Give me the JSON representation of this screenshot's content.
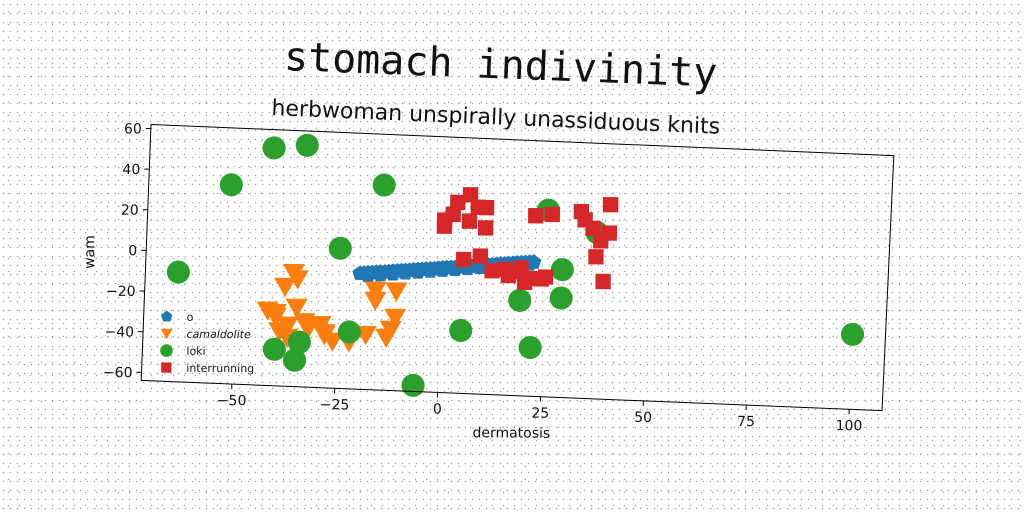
{
  "chart_data": {
    "type": "scatter",
    "title": "stomach indivinity",
    "subtitle": "herbwoman unspirally unassiduous knits",
    "xlabel": "dermatosis",
    "ylabel": "wam",
    "xlim": [
      -72,
      108
    ],
    "ylim": [
      -64,
      62
    ],
    "xticks": [
      -50,
      -25,
      0,
      25,
      50,
      75,
      100
    ],
    "yticks": [
      60,
      40,
      20,
      0,
      -20,
      -40,
      -60
    ],
    "xtick_labels": [
      "−50",
      "−25",
      "0",
      "25",
      "50",
      "75",
      "100"
    ],
    "ytick_labels": [
      "60",
      "40",
      "20",
      "0",
      "−20",
      "−40",
      "−60"
    ],
    "grid": false,
    "legend_position": "lower-left",
    "series": [
      {
        "name": "o",
        "marker": "pentagon",
        "color": "#1f77b4",
        "x": [
          -20,
          -19,
          -18,
          -17,
          -16,
          -15,
          -14,
          -13,
          -12,
          -11,
          -10,
          -9,
          -8,
          -7,
          -6,
          -5,
          -4,
          -3,
          -2,
          -1,
          0,
          1,
          2,
          3,
          4,
          5,
          6,
          7,
          8,
          9,
          10,
          11,
          12,
          13,
          14,
          15,
          16,
          17,
          18,
          19,
          20,
          21,
          22,
          -18,
          -15,
          -12,
          -9,
          -6,
          -3,
          0,
          3,
          6,
          9,
          12,
          15,
          18,
          21
        ],
        "y": [
          -7,
          -6.8,
          -6.6,
          -6.4,
          -6.2,
          -6,
          -5.8,
          -5.6,
          -5.3,
          -5.1,
          -4.9,
          -4.7,
          -4.5,
          -4.2,
          -4,
          -3.8,
          -3.6,
          -3.4,
          -3.2,
          -2.9,
          -2.7,
          -2.5,
          -2.3,
          -2.1,
          -1.8,
          -1.6,
          -1.4,
          -1.2,
          -1,
          -0.7,
          -0.5,
          -0.3,
          -0.1,
          0.2,
          0.4,
          0.6,
          0.8,
          1,
          1.3,
          1.5,
          1.7,
          1.9,
          2.1,
          -8,
          -7.3,
          -6.6,
          -5.9,
          -5.2,
          -4.5,
          -3.8,
          -3.1,
          -2.4,
          -1.7,
          -1,
          -0.3,
          0.4,
          1.1
        ]
      },
      {
        "name": "camaldolite",
        "marker": "triangle-down",
        "color": "#ff7f0e",
        "x": [
          -36,
          -35,
          -38,
          -35,
          -42,
          -40,
          -39,
          -37,
          -33,
          -32,
          -29,
          -28,
          -26,
          -22,
          -18,
          -16,
          -11,
          -16,
          -11,
          -12,
          -13,
          -28,
          -37,
          -40
        ],
        "y": [
          -8,
          -11,
          -15,
          -25,
          -27,
          -30,
          -37,
          -40,
          -32,
          -35,
          -33,
          -37,
          -41,
          -41,
          -37,
          -20,
          -15,
          -15,
          -28,
          -34,
          -38,
          -38,
          -34,
          -28
        ]
      },
      {
        "name": "loki",
        "marker": "circle",
        "color": "#2ca02c",
        "x": [
          -42,
          -34,
          -52,
          -15,
          -64,
          -25,
          -22,
          -34,
          -35,
          -6,
          5,
          22,
          19,
          29,
          29,
          25,
          37,
          100,
          -40
        ],
        "y": [
          53,
          55,
          34,
          37,
          -10,
          5,
          -36,
          -42,
          -51,
          -61,
          -33,
          -40,
          -17,
          -15,
          -1,
          28,
          18,
          -27,
          -46
        ]
      },
      {
        "name": "interrunning",
        "marker": "square",
        "color": "#d62728",
        "x": [
          6,
          8,
          3,
          10,
          2,
          6,
          0,
          0,
          10,
          22,
          26,
          33,
          40,
          34,
          36,
          40,
          38,
          37,
          39,
          5,
          9,
          12,
          16,
          21,
          24,
          18,
          20,
          15,
          19,
          25
        ],
        "y": [
          34,
          28,
          30,
          28,
          24,
          21,
          18,
          21,
          18,
          25,
          26,
          28,
          32,
          24,
          20,
          18,
          14,
          6,
          -6,
          2,
          4,
          -3,
          -5,
          -6,
          -6,
          -3,
          -8,
          -2,
          -1,
          -5
        ]
      }
    ]
  }
}
